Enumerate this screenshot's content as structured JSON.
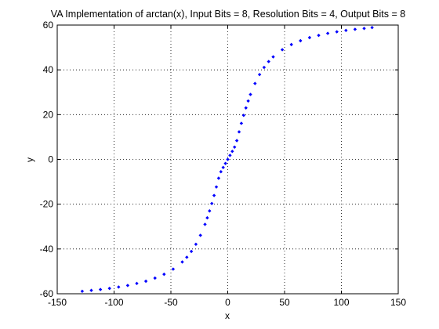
{
  "chart_data": {
    "type": "scatter",
    "title": "VA Implementation of arctan(x), Input Bits = 8, Resolution Bits = 4, Output Bits = 8",
    "xlabel": "x",
    "ylabel": "y",
    "xlim": [
      -150,
      150
    ],
    "ylim": [
      -60,
      60
    ],
    "xticks": [
      -150,
      -100,
      -50,
      0,
      50,
      100,
      150
    ],
    "yticks": [
      -60,
      -40,
      -20,
      0,
      20,
      40,
      60
    ],
    "xtick_labels": [
      "-150",
      "-100",
      "-50",
      "0",
      "50",
      "100",
      "150"
    ],
    "ytick_labels": [
      "-60",
      "-40",
      "-20",
      "0",
      "20",
      "40",
      "60"
    ],
    "grid": true,
    "marker_color": "#0000ff",
    "series": [
      {
        "x": [
          -128,
          -120,
          -112,
          -104,
          -96,
          -88,
          -80,
          -72,
          -64,
          -56,
          -48,
          -40,
          -36,
          -32,
          -28,
          -24,
          -20,
          -18,
          -16,
          -14,
          -12,
          -10,
          -8,
          -6,
          -4,
          -2,
          0,
          2,
          4,
          6,
          8,
          10,
          12,
          14,
          16,
          18,
          20,
          24,
          28,
          32,
          36,
          40,
          48,
          56,
          64,
          72,
          80,
          88,
          96,
          104,
          112,
          120,
          127
        ],
        "y": [
          -58.9,
          -58.5,
          -58.1,
          -57.6,
          -57.0,
          -56.3,
          -55.4,
          -54.4,
          -53.0,
          -51.3,
          -49.0,
          -45.8,
          -43.7,
          -41.1,
          -37.9,
          -33.9,
          -29.0,
          -26.1,
          -23.0,
          -19.7,
          -16.1,
          -12.3,
          -8.4,
          -5.5,
          -3.6,
          -1.8,
          0.0,
          1.8,
          3.6,
          5.5,
          8.4,
          12.3,
          16.1,
          19.7,
          23.0,
          26.1,
          29.0,
          33.9,
          37.9,
          41.1,
          43.7,
          45.8,
          49.0,
          51.3,
          53.0,
          54.4,
          55.4,
          56.3,
          57.0,
          57.6,
          58.1,
          58.5,
          58.9
        ]
      }
    ]
  }
}
